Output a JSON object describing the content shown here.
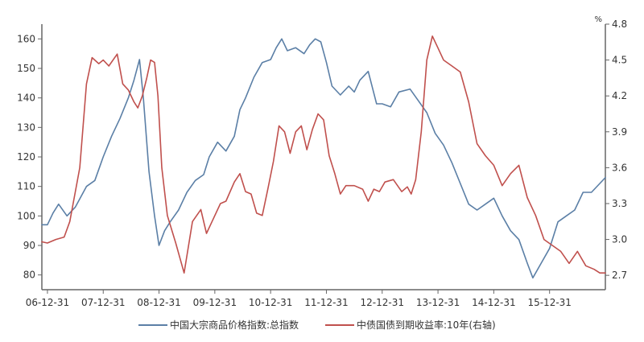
{
  "chart_data": {
    "type": "line",
    "unit_label_right": "%",
    "x_tick_labels": [
      "06-12-31",
      "07-12-31",
      "08-12-31",
      "09-12-31",
      "10-12-31",
      "11-12-31",
      "12-12-31",
      "13-12-31",
      "14-12-31",
      "15-12-31"
    ],
    "x_ticks_years": [
      2007.0,
      2008.0,
      2009.0,
      2010.0,
      2011.0,
      2012.0,
      2013.0,
      2014.0,
      2015.0,
      2016.0
    ],
    "x_range": [
      2006.9,
      2017.0
    ],
    "y_left": {
      "range": [
        75,
        165
      ],
      "ticks": [
        80,
        90,
        100,
        110,
        120,
        130,
        140,
        150,
        160
      ]
    },
    "y_right": {
      "range": [
        2.58,
        4.8
      ],
      "ticks": [
        2.7,
        3.0,
        3.3,
        3.6,
        3.9,
        4.2,
        4.5,
        4.8
      ],
      "tick_labels": [
        "2.7",
        "3.0",
        "3.3",
        "3.6",
        "3.9",
        "4.2",
        "4.5",
        "4.8"
      ]
    },
    "grid": false,
    "legend_position": "bottom",
    "series": [
      {
        "name": "中国大宗商品价格指数:总指数",
        "axis": "left",
        "color": "#5b7fa6",
        "x": [
          2006.9,
          2007.0,
          2007.1,
          2007.2,
          2007.35,
          2007.5,
          2007.7,
          2007.85,
          2008.0,
          2008.15,
          2008.3,
          2008.45,
          2008.55,
          2008.65,
          2008.72,
          2008.82,
          2008.92,
          2009.0,
          2009.1,
          2009.2,
          2009.35,
          2009.5,
          2009.65,
          2009.8,
          2009.9,
          2010.05,
          2010.2,
          2010.35,
          2010.45,
          2010.55,
          2010.7,
          2010.85,
          2011.0,
          2011.1,
          2011.2,
          2011.3,
          2011.45,
          2011.6,
          2011.7,
          2011.8,
          2011.9,
          2012.0,
          2012.1,
          2012.25,
          2012.4,
          2012.5,
          2012.6,
          2012.75,
          2012.9,
          2013.0,
          2013.15,
          2013.3,
          2013.5,
          2013.65,
          2013.8,
          2013.95,
          2014.1,
          2014.25,
          2014.4,
          2014.55,
          2014.7,
          2014.85,
          2015.0,
          2015.15,
          2015.3,
          2015.45,
          2015.6,
          2015.7,
          2015.85,
          2016.0,
          2016.15,
          2016.3,
          2016.45,
          2016.6,
          2016.75,
          2016.9,
          2017.0
        ],
        "y": [
          97,
          97,
          101,
          104,
          100,
          103,
          110,
          112,
          120,
          127,
          133,
          140,
          146,
          153,
          140,
          115,
          100,
          90,
          95,
          98,
          102,
          108,
          112,
          114,
          120,
          125,
          122,
          127,
          136,
          140,
          147,
          152,
          153,
          157,
          160,
          156,
          157,
          155,
          158,
          160,
          159,
          152,
          144,
          141,
          144,
          142,
          146,
          149,
          138,
          138,
          137,
          142,
          143,
          139,
          135,
          128,
          124,
          118,
          111,
          104,
          102,
          104,
          106,
          100,
          95,
          92,
          84,
          79,
          84,
          89,
          98,
          100,
          102,
          108,
          108,
          111,
          113
        ]
      },
      {
        "name": "中债国债到期收益率:10年(右轴)",
        "axis": "right",
        "color": "#c0504d",
        "x": [
          2006.9,
          2007.0,
          2007.15,
          2007.3,
          2007.4,
          2007.5,
          2007.58,
          2007.7,
          2007.8,
          2007.92,
          2008.0,
          2008.1,
          2008.25,
          2008.35,
          2008.45,
          2008.55,
          2008.62,
          2008.7,
          2008.78,
          2008.85,
          2008.92,
          2008.98,
          2009.05,
          2009.15,
          2009.3,
          2009.45,
          2009.6,
          2009.75,
          2009.85,
          2009.95,
          2010.1,
          2010.2,
          2010.35,
          2010.45,
          2010.55,
          2010.65,
          2010.75,
          2010.85,
          2010.95,
          2011.05,
          2011.15,
          2011.25,
          2011.35,
          2011.45,
          2011.55,
          2011.65,
          2011.75,
          2011.85,
          2011.95,
          2012.05,
          2012.15,
          2012.25,
          2012.35,
          2012.5,
          2012.65,
          2012.75,
          2012.85,
          2012.95,
          2013.05,
          2013.2,
          2013.35,
          2013.45,
          2013.52,
          2013.6,
          2013.7,
          2013.8,
          2013.9,
          2014.0,
          2014.1,
          2014.25,
          2014.4,
          2014.55,
          2014.7,
          2014.85,
          2015.0,
          2015.15,
          2015.3,
          2015.45,
          2015.6,
          2015.75,
          2015.9,
          2016.05,
          2016.2,
          2016.35,
          2016.5,
          2016.65,
          2016.8,
          2016.9,
          2017.0
        ],
        "y": [
          2.98,
          2.97,
          3.0,
          3.02,
          3.15,
          3.4,
          3.6,
          4.3,
          4.52,
          4.47,
          4.5,
          4.45,
          4.55,
          4.3,
          4.25,
          4.15,
          4.1,
          4.2,
          4.35,
          4.5,
          4.48,
          4.2,
          3.6,
          3.2,
          2.97,
          2.72,
          3.15,
          3.25,
          3.05,
          3.15,
          3.3,
          3.32,
          3.48,
          3.55,
          3.4,
          3.38,
          3.22,
          3.2,
          3.42,
          3.65,
          3.95,
          3.9,
          3.72,
          3.9,
          3.95,
          3.75,
          3.92,
          4.05,
          4.0,
          3.7,
          3.55,
          3.38,
          3.45,
          3.45,
          3.42,
          3.32,
          3.42,
          3.4,
          3.48,
          3.5,
          3.4,
          3.44,
          3.38,
          3.5,
          3.9,
          4.5,
          4.7,
          4.6,
          4.5,
          4.45,
          4.4,
          4.15,
          3.8,
          3.7,
          3.62,
          3.45,
          3.55,
          3.62,
          3.35,
          3.2,
          3.0,
          2.95,
          2.9,
          2.8,
          2.9,
          2.78,
          2.75,
          2.72,
          2.72
        ]
      }
    ]
  }
}
